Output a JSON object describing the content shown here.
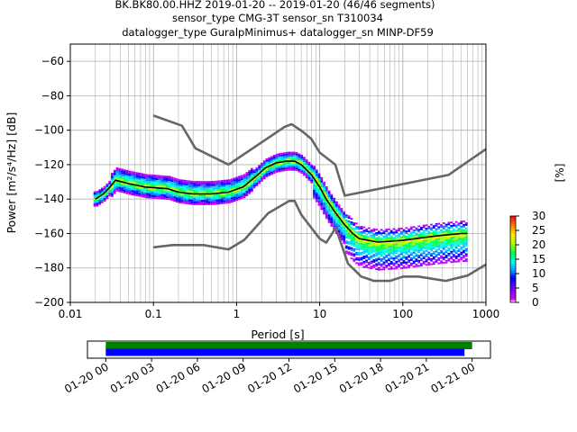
{
  "chart_data": [
    {
      "type": "heatmap",
      "title_lines": [
        "BK.BK80.00.HHZ   2019-01-20 -- 2019-01-20  (46/46 segments)",
        "sensor_type CMG-3T sensor_sn T310034",
        "datalogger_type GuralpMinimus+ datalogger_sn MINP-DF59"
      ],
      "xlabel": "Period [s]",
      "ylabel": "Power [m²/s⁴/Hz] [dB]",
      "xscale": "log",
      "xlim": [
        0.01,
        1000
      ],
      "ylim": [
        -200,
        -50
      ],
      "x_ticks": [
        {
          "v": 0.01,
          "label": "0.01"
        },
        {
          "v": 0.1,
          "label": "0.1"
        },
        {
          "v": 1,
          "label": "1"
        },
        {
          "v": 10,
          "label": "10"
        },
        {
          "v": 100,
          "label": "100"
        },
        {
          "v": 1000,
          "label": "1000"
        }
      ],
      "y_ticks": [
        {
          "v": -60,
          "label": "−60"
        },
        {
          "v": -80,
          "label": "−80"
        },
        {
          "v": -100,
          "label": "−100"
        },
        {
          "v": -120,
          "label": "−120"
        },
        {
          "v": -140,
          "label": "−140"
        },
        {
          "v": -160,
          "label": "−160"
        },
        {
          "v": -180,
          "label": "−180"
        },
        {
          "v": -200,
          "label": "−200"
        }
      ],
      "grid": true,
      "noise_models": {
        "high": [
          [
            0.1,
            -91.5
          ],
          [
            0.22,
            -97.4
          ],
          [
            0.32,
            -110.5
          ],
          [
            0.8,
            -120
          ],
          [
            3.8,
            -98
          ],
          [
            4.6,
            -96.5
          ],
          [
            6.3,
            -101
          ],
          [
            7.9,
            -105
          ],
          [
            10,
            -113
          ],
          [
            15.4,
            -120
          ],
          [
            20,
            -138
          ],
          [
            354,
            -126
          ],
          [
            1000,
            -111
          ]
        ],
        "low": [
          [
            0.1,
            -168
          ],
          [
            0.17,
            -166.7
          ],
          [
            0.4,
            -166.7
          ],
          [
            0.8,
            -169.2
          ],
          [
            1.24,
            -163.7
          ],
          [
            2.4,
            -148.2
          ],
          [
            4.3,
            -141.1
          ],
          [
            5,
            -141.1
          ],
          [
            6,
            -149
          ],
          [
            10,
            -163
          ],
          [
            12,
            -165.3
          ],
          [
            15.6,
            -156.7
          ],
          [
            21.9,
            -177.5
          ],
          [
            31.6,
            -185
          ],
          [
            45,
            -187.5
          ],
          [
            70,
            -187.5
          ],
          [
            101,
            -185
          ],
          [
            154,
            -185
          ],
          [
            328,
            -187.5
          ],
          [
            600,
            -184.4
          ],
          [
            1000,
            -178
          ]
        ]
      },
      "mode_curve": [
        [
          0.02,
          -140
        ],
        [
          0.025,
          -137
        ],
        [
          0.03,
          -133
        ],
        [
          0.035,
          -129
        ],
        [
          0.05,
          -131
        ],
        [
          0.08,
          -133
        ],
        [
          0.15,
          -134
        ],
        [
          0.2,
          -136
        ],
        [
          0.3,
          -137
        ],
        [
          0.5,
          -137
        ],
        [
          0.8,
          -136
        ],
        [
          1.2,
          -133
        ],
        [
          1.7,
          -127
        ],
        [
          2.2,
          -122
        ],
        [
          3,
          -119
        ],
        [
          4,
          -118
        ],
        [
          5,
          -118
        ],
        [
          6,
          -120
        ],
        [
          8,
          -126
        ],
        [
          10,
          -133
        ],
        [
          12,
          -140
        ],
        [
          15,
          -147
        ],
        [
          20,
          -155
        ],
        [
          25,
          -160
        ],
        [
          30,
          -163
        ],
        [
          50,
          -165
        ],
        [
          100,
          -164
        ],
        [
          200,
          -162
        ],
        [
          300,
          -161
        ],
        [
          500,
          -160
        ],
        [
          600,
          -160
        ]
      ],
      "colorbar": {
        "label": "[%]",
        "range": [
          0,
          30
        ],
        "ticks": [
          0,
          5,
          10,
          15,
          20,
          25,
          30
        ]
      }
    },
    {
      "type": "timeline",
      "x_tick_labels": [
        "01-20 00",
        "01-20 03",
        "01-20 06",
        "01-20 09",
        "01-20 12",
        "01-20 15",
        "01-20 18",
        "01-20 21",
        "01-21 00"
      ],
      "x_range_hours": [
        -1.2,
        25.2
      ],
      "bars": [
        {
          "color": "#008000",
          "start_hour": 0,
          "end_hour": 24.0
        },
        {
          "color": "#0000ff",
          "start_hour": 0,
          "end_hour": 23.5
        }
      ]
    }
  ]
}
